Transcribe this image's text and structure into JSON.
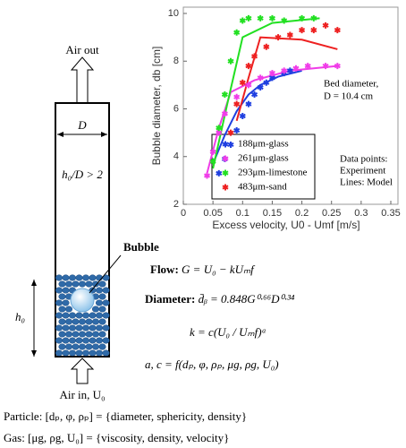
{
  "chart_data": {
    "type": "scatter",
    "xlabel": "Excess velocity, U0 - Umf [m/s]",
    "ylabel": "Bubble diameter, db [cm]",
    "xlim": [
      0,
      0.35
    ],
    "xticks": [
      0,
      0.05,
      0.1,
      0.15,
      0.2,
      0.25,
      0.3,
      0.35
    ],
    "ylim": [
      2,
      10
    ],
    "yticks": [
      2,
      4,
      6,
      8,
      10
    ],
    "series": [
      {
        "name": "188μm-glass",
        "color": "#1f3fe0",
        "x": [
          0.06,
          0.07,
          0.08,
          0.09,
          0.1,
          0.11,
          0.12,
          0.13,
          0.14,
          0.15,
          0.17,
          0.18
        ],
        "values": [
          3.3,
          3.9,
          4.5,
          5.1,
          5.7,
          6.2,
          6.6,
          6.9,
          7.1,
          7.3,
          7.5,
          7.6
        ]
      },
      {
        "name": "261μm-glass",
        "color": "#f03ce8",
        "x": [
          0.04,
          0.05,
          0.06,
          0.07,
          0.09,
          0.11,
          0.13,
          0.15,
          0.17,
          0.19,
          0.21,
          0.24,
          0.26
        ],
        "values": [
          3.2,
          4.2,
          5.0,
          5.8,
          6.5,
          7.0,
          7.3,
          7.5,
          7.6,
          7.7,
          7.8,
          7.8,
          7.8
        ]
      },
      {
        "name": "293μm-limestone",
        "color": "#22e022",
        "x": [
          0.05,
          0.06,
          0.07,
          0.08,
          0.09,
          0.1,
          0.11,
          0.13,
          0.15,
          0.17,
          0.2,
          0.22
        ],
        "values": [
          3.8,
          5.2,
          6.6,
          8.0,
          9.2,
          9.7,
          9.8,
          9.8,
          9.8,
          9.7,
          9.8,
          9.8
        ]
      },
      {
        "name": "483μm-sand",
        "color": "#ee2020",
        "x": [
          0.08,
          0.09,
          0.1,
          0.11,
          0.12,
          0.14,
          0.16,
          0.18,
          0.2,
          0.22,
          0.24,
          0.26
        ],
        "values": [
          5.0,
          6.2,
          7.1,
          7.8,
          8.2,
          8.6,
          9.0,
          9.1,
          9.3,
          9.3,
          9.5,
          9.3
        ]
      }
    ],
    "model_lines": [
      {
        "color": "#1f3fe0",
        "x": [
          0.05,
          0.07,
          0.09,
          0.11,
          0.13,
          0.16,
          0.2
        ],
        "values": [
          3.7,
          4.9,
          5.9,
          6.6,
          7.0,
          7.35,
          7.6
        ]
      },
      {
        "color": "#f03ce8",
        "x": [
          0.04,
          0.06,
          0.08,
          0.12,
          0.18,
          0.26
        ],
        "values": [
          3.3,
          5.2,
          6.7,
          7.2,
          7.6,
          7.8
        ]
      },
      {
        "color": "#22e022",
        "x": [
          0.05,
          0.075,
          0.1,
          0.15,
          0.23
        ],
        "values": [
          3.5,
          6.3,
          9.0,
          9.6,
          9.8
        ]
      },
      {
        "color": "#ee2020",
        "x": [
          0.09,
          0.11,
          0.13,
          0.2,
          0.26
        ],
        "values": [
          5.5,
          7.3,
          9.0,
          8.9,
          8.5
        ]
      }
    ],
    "annotations": [
      "Bed diameter,",
      "D = 10.4 cm",
      "Data points:",
      "Experiment",
      "Lines: Model"
    ]
  },
  "diagram": {
    "air_out": "Air out",
    "width": "D",
    "ratio": "h₀/D > 2",
    "height": "h₀",
    "air_in": "Air in, U₀",
    "bubble": "Bubble",
    "flow_label": "Flow:",
    "flow_formula": "G = U₀ − kUₘf",
    "diameter_label": "Diameter:",
    "diameter_formula": "d̄ᵦ = 0.848G⁰·⁶⁶D⁰·³⁴",
    "k_formula": "k = c(U₀ / Uₘf)ᵃ",
    "ac_formula": "a, c = f(dₚ, φ, ρₚ, μg, ρg, U₀)",
    "particle": "Particle: [dₚ, φ, ρₚ] = {diameter, sphericity, density}",
    "gas": "Gas: [μg, ρg, U₀] = {viscosity, density, velocity}"
  }
}
